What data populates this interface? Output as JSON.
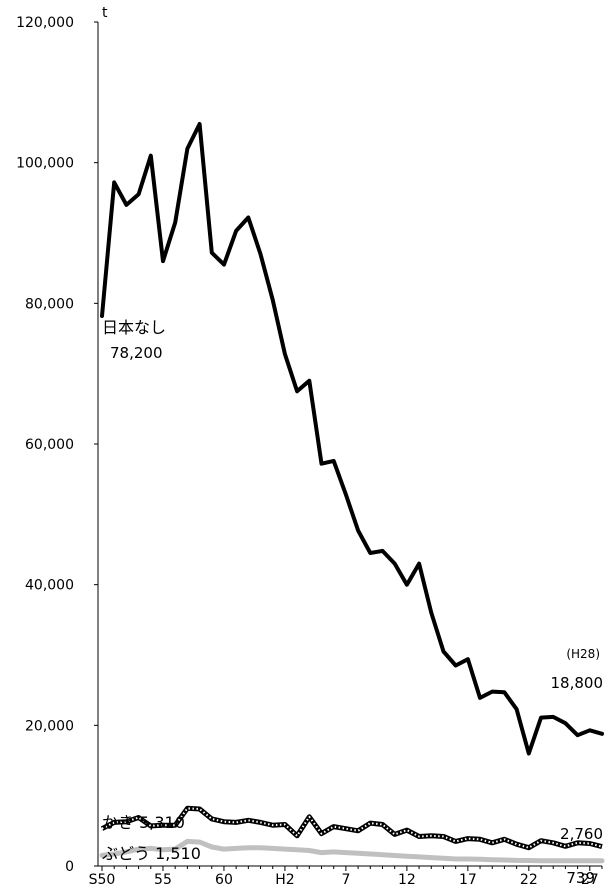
{
  "chart_data": {
    "type": "line",
    "title": "",
    "xlabel": "",
    "ylabel": "t",
    "ylim": [
      0,
      120000
    ],
    "yticks": [
      0,
      20000,
      40000,
      60000,
      80000,
      100000,
      120000
    ],
    "ytick_labels": [
      "0",
      "20,000",
      "40,000",
      "60,000",
      "80,000",
      "100,000",
      "120,000"
    ],
    "x": [
      "S50",
      "S51",
      "S52",
      "S53",
      "S54",
      "S55",
      "S56",
      "S57",
      "S58",
      "S59",
      "S60",
      "S61",
      "S62",
      "S63",
      "H1",
      "H2",
      "H3",
      "H4",
      "H5",
      "H6",
      "H7",
      "H8",
      "H9",
      "H10",
      "H11",
      "H12",
      "H13",
      "H14",
      "H15",
      "H16",
      "H17",
      "H18",
      "H19",
      "H20",
      "H21",
      "H22",
      "H23",
      "H24",
      "H25",
      "H26",
      "H27",
      "H28"
    ],
    "xtick_labels": [
      {
        "index": 0,
        "label": "S50"
      },
      {
        "index": 5,
        "label": "55"
      },
      {
        "index": 10,
        "label": "60"
      },
      {
        "index": 15,
        "label": "H2"
      },
      {
        "index": 20,
        "label": "7"
      },
      {
        "index": 25,
        "label": "12"
      },
      {
        "index": 30,
        "label": "17"
      },
      {
        "index": 35,
        "label": "22"
      },
      {
        "index": 40,
        "label": "27"
      }
    ],
    "grid": false,
    "series": [
      {
        "name": "日本なし",
        "color": "#000000",
        "style": "solid-thick",
        "values": [
          78200,
          97200,
          94000,
          95500,
          101000,
          86000,
          91500,
          102000,
          105500,
          87200,
          85500,
          90300,
          92200,
          87000,
          80500,
          72800,
          67500,
          69000,
          57200,
          57600,
          52800,
          47700,
          44500,
          44800,
          43000,
          40000,
          43000,
          36000,
          30500,
          28500,
          29400,
          23900,
          24800,
          24700,
          22300,
          16000,
          21100,
          21200,
          20300,
          18600,
          19300,
          18800
        ]
      },
      {
        "name": "かき",
        "color": "#333333",
        "style": "dotted-thick",
        "values": [
          5310,
          6200,
          6300,
          6900,
          5700,
          5800,
          5800,
          8200,
          8100,
          6700,
          6300,
          6200,
          6500,
          6200,
          5800,
          5900,
          4300,
          7000,
          4600,
          5600,
          5300,
          5000,
          6100,
          5900,
          4500,
          5100,
          4200,
          4300,
          4200,
          3500,
          3900,
          3800,
          3300,
          3800,
          3100,
          2600,
          3600,
          3300,
          2800,
          3300,
          3200,
          2760
        ]
      },
      {
        "name": "ぶどう",
        "color": "#c0c0c0",
        "style": "solid-thick",
        "values": [
          1510,
          1700,
          2000,
          2400,
          2500,
          2300,
          2400,
          3500,
          3400,
          2700,
          2400,
          2500,
          2600,
          2600,
          2500,
          2400,
          2300,
          2200,
          1900,
          2000,
          1900,
          1800,
          1700,
          1600,
          1500,
          1400,
          1300,
          1200,
          1100,
          1000,
          1000,
          950,
          900,
          850,
          800,
          780,
          760,
          750,
          745,
          742,
          740,
          739
        ]
      }
    ],
    "annotations": {
      "unit": "t",
      "nashi_name": "日本なし",
      "nashi_start": "78,200",
      "kaki_start": "かき 5,310",
      "budou_start": "ぶどう 1,510",
      "end_year": "(H28)",
      "nashi_end": "18,800",
      "kaki_end": "2,760",
      "budou_end": "739"
    }
  }
}
